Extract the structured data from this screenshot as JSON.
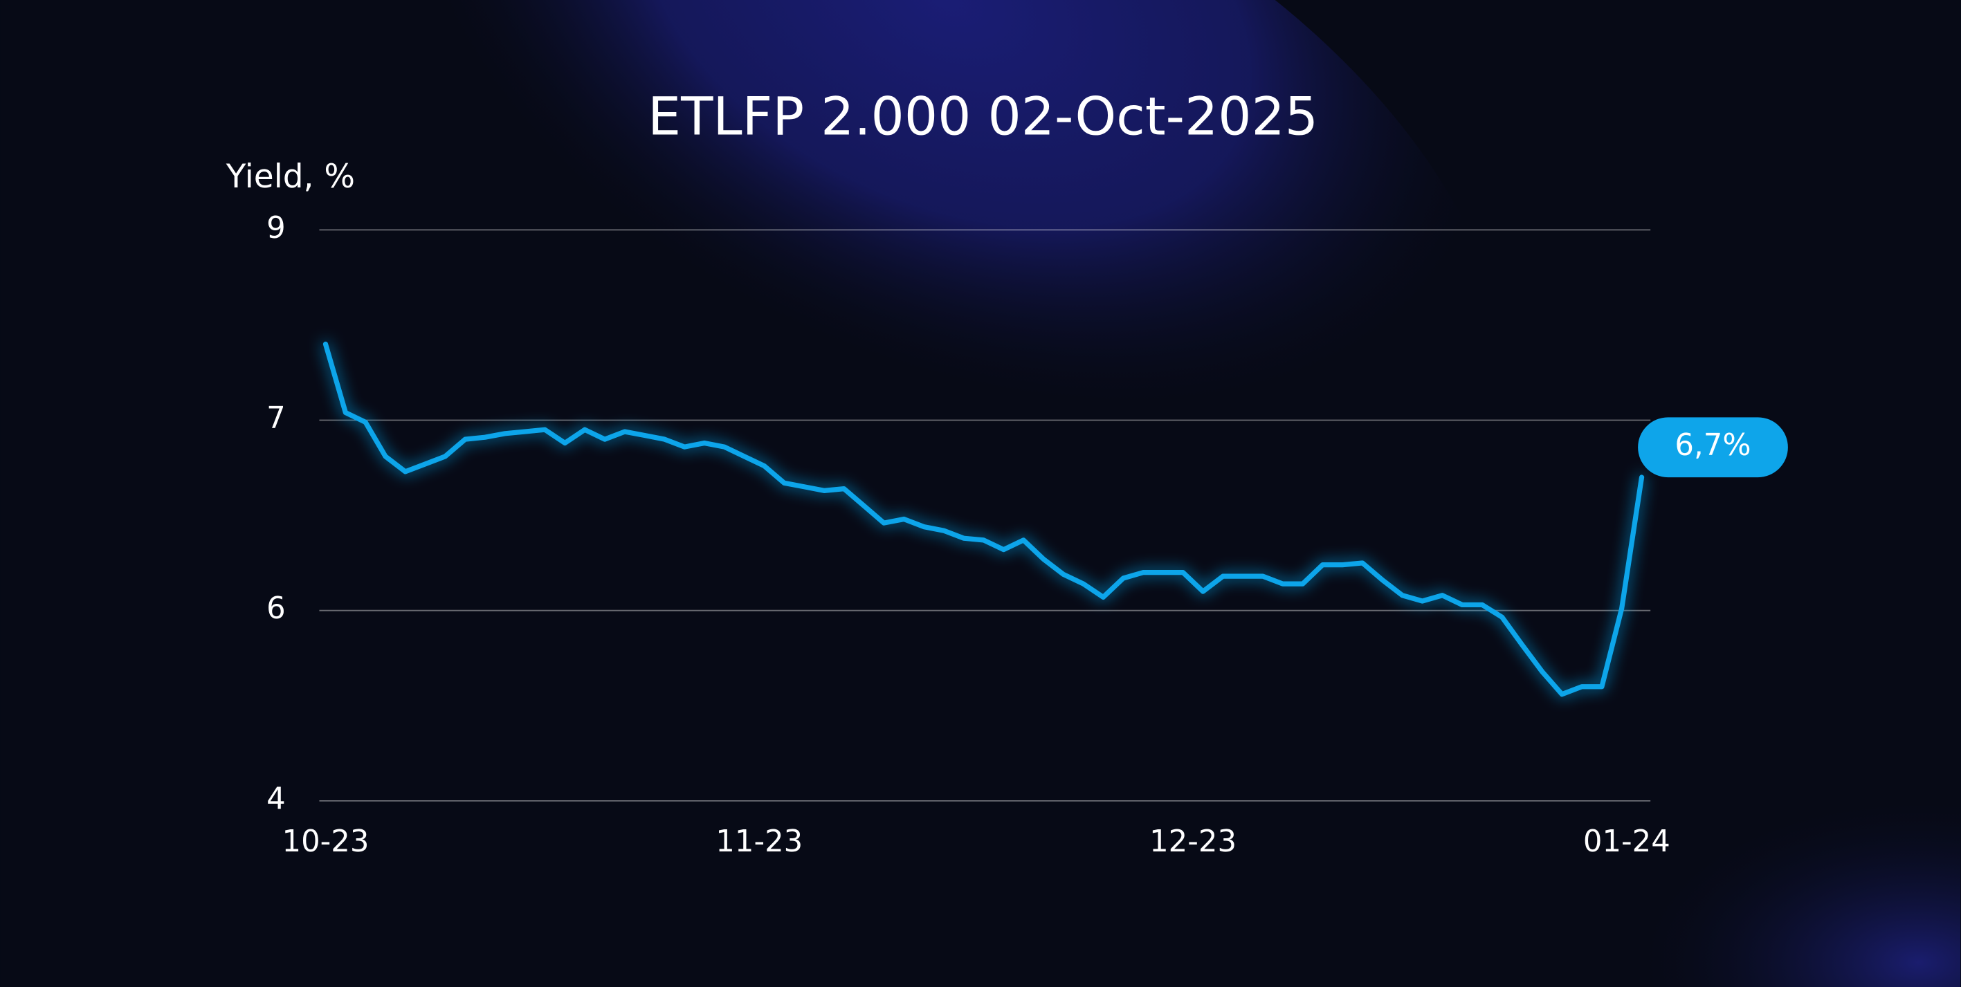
{
  "chart_data": {
    "type": "line",
    "title": "ETLFP 2.000 02-Oct-2025",
    "y_label": "Yield, %",
    "ylim": [
      4,
      9
    ],
    "yticks": [
      4,
      6,
      7,
      9
    ],
    "x_tick_labels": [
      "10-23",
      "11-23",
      "12-23",
      "01-24"
    ],
    "grid": true,
    "series": [
      {
        "name": "ETLFP 2.000 02-Oct-2025",
        "color": "#0ea5ea",
        "values": [
          7.8,
          7.08,
          6.99,
          6.81,
          6.73,
          6.77,
          6.81,
          6.9,
          6.91,
          6.93,
          6.94,
          6.95,
          6.88,
          6.95,
          6.9,
          6.94,
          6.92,
          6.9,
          6.86,
          6.88,
          6.86,
          6.81,
          6.76,
          6.67,
          6.65,
          6.63,
          6.64,
          6.55,
          6.46,
          6.48,
          6.44,
          6.42,
          6.38,
          6.37,
          6.32,
          6.37,
          6.27,
          6.19,
          6.14,
          6.07,
          6.17,
          6.2,
          6.2,
          6.2,
          6.1,
          6.18,
          6.18,
          6.18,
          6.14,
          6.14,
          6.24,
          6.24,
          6.25,
          6.16,
          6.08,
          6.05,
          6.08,
          6.03,
          6.03,
          5.93,
          5.64,
          5.36,
          5.12,
          5.2,
          5.2,
          6.01,
          6.7
        ],
        "value_labels": [
          null,
          null,
          null,
          null,
          null,
          null,
          null,
          null,
          null,
          null,
          null,
          null,
          null,
          null,
          null,
          null,
          null,
          null,
          null,
          null,
          null,
          null,
          null,
          null,
          null,
          null,
          null,
          null,
          null,
          null,
          null,
          null,
          null,
          null,
          null,
          null,
          null,
          null,
          null,
          null,
          null,
          null,
          null,
          null,
          null,
          null,
          null,
          null,
          null,
          null,
          null,
          null,
          null,
          null,
          null,
          null,
          null,
          null,
          null,
          null,
          null,
          null,
          null,
          null,
          null,
          null,
          "6,7%"
        ]
      }
    ]
  }
}
